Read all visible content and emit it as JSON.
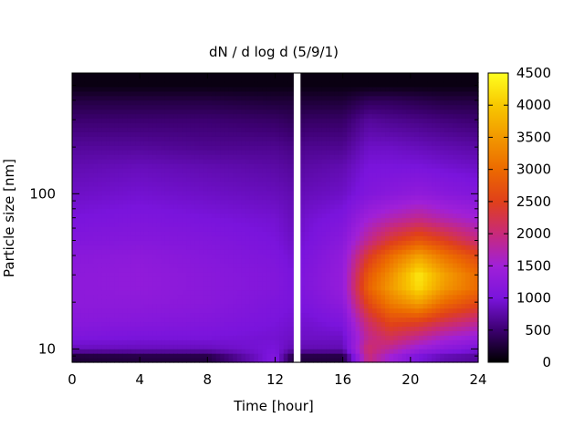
{
  "chart_data": {
    "type": "heatmap",
    "title": "dN / d log d (5/9/1)",
    "xlabel": "Time [hour]",
    "ylabel": "Particle size [nm]",
    "x_ticks": [
      0,
      4,
      8,
      12,
      16,
      20,
      24
    ],
    "xlim": [
      0,
      24
    ],
    "y_scale": "log",
    "ylim": [
      8.2,
      600
    ],
    "y_ticks": [
      10,
      100
    ],
    "data_gap_hours": [
      13.1,
      13.5
    ],
    "colorbar": {
      "ticks": [
        0,
        500,
        1000,
        1500,
        2000,
        2500,
        3000,
        3500,
        4000,
        4500
      ],
      "range": [
        0,
        4500
      ],
      "stops": [
        {
          "value": 0,
          "color": "#000000"
        },
        {
          "value": 500,
          "color": "#3c0070"
        },
        {
          "value": 1000,
          "color": "#7a14dc"
        },
        {
          "value": 1500,
          "color": "#a020d8"
        },
        {
          "value": 2000,
          "color": "#c82a7a"
        },
        {
          "value": 2500,
          "color": "#e0401a"
        },
        {
          "value": 3000,
          "color": "#ec6a00"
        },
        {
          "value": 3500,
          "color": "#f29800"
        },
        {
          "value": 4000,
          "color": "#f8c800"
        },
        {
          "value": 4500,
          "color": "#ffff20"
        }
      ]
    },
    "size_bins_nm": [
      9,
      10,
      12,
      15,
      20,
      25,
      30,
      40,
      50,
      70,
      100,
      150,
      200,
      300,
      400,
      500
    ],
    "profiles": [
      {
        "time": 0,
        "values": [
          250,
          850,
          1050,
          1180,
          1250,
          1250,
          1250,
          1200,
          1100,
          1000,
          900,
          800,
          700,
          500,
          300,
          80
        ]
      },
      {
        "time": 4,
        "values": [
          300,
          850,
          1000,
          1150,
          1250,
          1300,
          1300,
          1250,
          1150,
          1050,
          950,
          850,
          700,
          500,
          300,
          80
        ]
      },
      {
        "time": 8,
        "values": [
          300,
          850,
          1000,
          1100,
          1200,
          1200,
          1200,
          1150,
          1100,
          1000,
          900,
          800,
          650,
          500,
          300,
          80
        ]
      },
      {
        "time": 12,
        "values": [
          1100,
          1000,
          950,
          1000,
          1050,
          1100,
          1100,
          1050,
          1000,
          950,
          850,
          750,
          650,
          450,
          250,
          80
        ]
      },
      {
        "time": 13,
        "values": [
          300,
          800,
          900,
          950,
          1000,
          1000,
          1000,
          950,
          900,
          850,
          800,
          700,
          600,
          400,
          250,
          80
        ]
      },
      {
        "time": 14,
        "values": [
          300,
          800,
          900,
          950,
          1050,
          1100,
          1100,
          1050,
          1000,
          950,
          850,
          750,
          650,
          450,
          250,
          80
        ]
      },
      {
        "time": 16,
        "values": [
          300,
          800,
          900,
          1050,
          1250,
          1350,
          1350,
          1300,
          1200,
          1050,
          900,
          800,
          650,
          450,
          250,
          80
        ]
      },
      {
        "time": 17.5,
        "values": [
          2000,
          2100,
          1900,
          2100,
          2600,
          2900,
          2800,
          2400,
          1900,
          1500,
          1100,
          1000,
          900,
          700,
          400,
          80
        ]
      },
      {
        "time": 18.8,
        "values": [
          1500,
          1800,
          2200,
          2600,
          3200,
          3500,
          3400,
          3000,
          2400,
          1700,
          1200,
          1000,
          900,
          650,
          400,
          80
        ]
      },
      {
        "time": 20.5,
        "values": [
          1000,
          1400,
          1900,
          2500,
          3600,
          4200,
          4300,
          3600,
          2800,
          1900,
          1300,
          1000,
          850,
          600,
          350,
          80
        ]
      },
      {
        "time": 22,
        "values": [
          800,
          1200,
          1600,
          2200,
          3000,
          3500,
          3600,
          3100,
          2500,
          1700,
          1200,
          950,
          800,
          550,
          300,
          80
        ]
      },
      {
        "time": 24,
        "values": [
          700,
          1000,
          1400,
          1900,
          2600,
          3000,
          3000,
          2600,
          2000,
          1500,
          1100,
          900,
          750,
          500,
          300,
          80
        ]
      }
    ]
  }
}
